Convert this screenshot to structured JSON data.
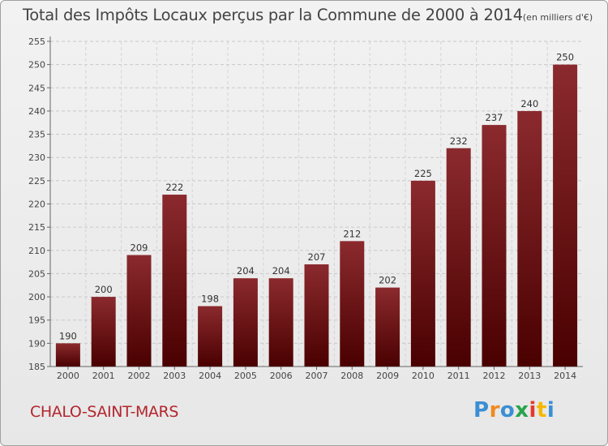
{
  "chart_data": {
    "type": "bar",
    "title": "Total des Impôts Locaux perçus par la Commune de 2000 à 2014",
    "unit_note": "(en milliers d'€)",
    "categories": [
      "2000",
      "2001",
      "2002",
      "2003",
      "2004",
      "2005",
      "2006",
      "2007",
      "2008",
      "2009",
      "2010",
      "2011",
      "2012",
      "2013",
      "2014"
    ],
    "values": [
      190,
      200,
      209,
      222,
      198,
      204,
      204,
      207,
      212,
      202,
      225,
      232,
      237,
      240,
      250
    ],
    "ylim": [
      185,
      255
    ],
    "yticks": [
      185,
      190,
      195,
      200,
      205,
      210,
      215,
      220,
      225,
      230,
      235,
      240,
      245,
      250,
      255
    ],
    "xlabel": "",
    "ylabel": "",
    "grid": "horizontal dashed",
    "bar_color_top": "#8b2a2e",
    "bar_color_bottom": "#4a0000"
  },
  "commune": "CHALO-SAINT-MARS",
  "logo": {
    "letters": [
      "P",
      "r",
      "o",
      "x",
      "i",
      "t",
      "i"
    ],
    "colors": [
      "#3a8fd4",
      "#f08a1e",
      "#3a8fd4",
      "#2aa34a",
      "#e23b2e",
      "#f5b800",
      "#3a8fd4"
    ]
  },
  "colors": {
    "title": "#444444",
    "commune": "#b3262d"
  }
}
